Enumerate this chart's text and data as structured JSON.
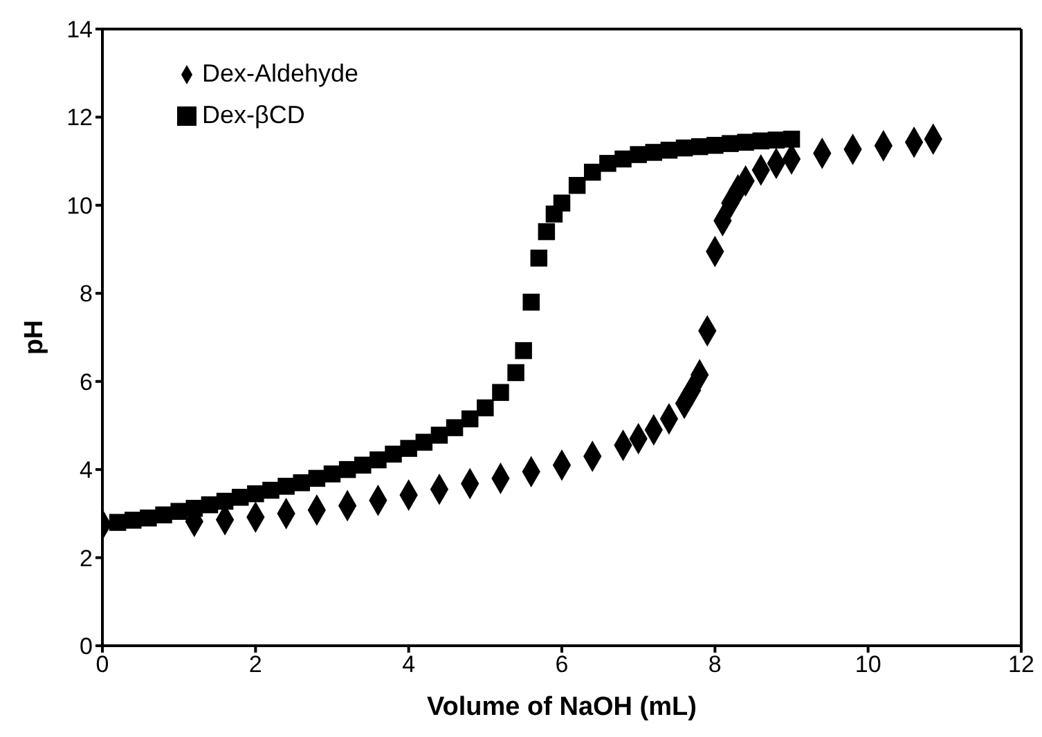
{
  "chart_data": {
    "type": "scatter",
    "xlabel": "Volume of NaOH (mL)",
    "ylabel": "pH",
    "xlim": [
      0,
      12
    ],
    "xticks": [
      0,
      2,
      4,
      6,
      8,
      10,
      12
    ],
    "ylim": [
      0,
      14
    ],
    "yticks": [
      0,
      2,
      4,
      6,
      8,
      10,
      12,
      14
    ],
    "grid": false,
    "legend": "top left",
    "series": [
      {
        "name": "Dex-Aldehyde",
        "color": "#000000",
        "marker": "diamond",
        "x": [
          0,
          0.8,
          1.2,
          1.6,
          2.0,
          2.4,
          2.8,
          3.2,
          3.6,
          4.0,
          4.4,
          4.8,
          5.2,
          5.6,
          6.0,
          6.4,
          6.8,
          7.0,
          7.2,
          7.4,
          7.6,
          7.7,
          7.8,
          7.9,
          8.0,
          8.1,
          8.2,
          8.3,
          8.4,
          8.6,
          8.8,
          9.0,
          9.4,
          9.8,
          10.2,
          10.6,
          10.85
        ],
        "values": [
          2.75,
          null,
          2.82,
          2.86,
          2.92,
          3.0,
          3.08,
          3.18,
          3.3,
          3.42,
          3.55,
          3.68,
          3.8,
          3.95,
          4.1,
          4.3,
          4.55,
          4.7,
          4.9,
          5.15,
          5.5,
          5.8,
          6.15,
          7.15,
          8.95,
          9.65,
          10.05,
          10.35,
          10.55,
          10.8,
          10.95,
          11.05,
          11.18,
          11.27,
          11.35,
          11.43,
          11.5
        ]
      },
      {
        "name": "Dex-βCD",
        "color": "#000000",
        "marker": "square",
        "x": [
          0.2,
          0.4,
          0.6,
          0.8,
          1.0,
          1.2,
          1.4,
          1.6,
          1.8,
          2.0,
          2.2,
          2.4,
          2.6,
          2.8,
          3.0,
          3.2,
          3.4,
          3.6,
          3.8,
          4.0,
          4.2,
          4.4,
          4.6,
          4.8,
          5.0,
          5.2,
          5.4,
          5.5,
          5.6,
          5.7,
          5.8,
          5.9,
          6.0,
          6.2,
          6.4,
          6.6,
          6.8,
          7.0,
          7.2,
          7.4,
          7.6,
          7.8,
          8.0,
          8.2,
          8.4,
          8.6,
          8.8,
          9.0
        ],
        "values": [
          2.8,
          2.85,
          2.9,
          2.97,
          3.05,
          3.12,
          3.2,
          3.28,
          3.37,
          3.45,
          3.53,
          3.62,
          3.7,
          3.8,
          3.9,
          4.0,
          4.1,
          4.22,
          4.35,
          4.48,
          4.62,
          4.78,
          4.95,
          5.15,
          5.4,
          5.75,
          6.2,
          6.7,
          7.8,
          8.8,
          9.4,
          9.8,
          10.05,
          10.45,
          10.75,
          10.95,
          11.05,
          11.15,
          11.2,
          11.25,
          11.3,
          11.33,
          11.36,
          11.4,
          11.43,
          11.46,
          11.48,
          11.5
        ]
      }
    ]
  }
}
